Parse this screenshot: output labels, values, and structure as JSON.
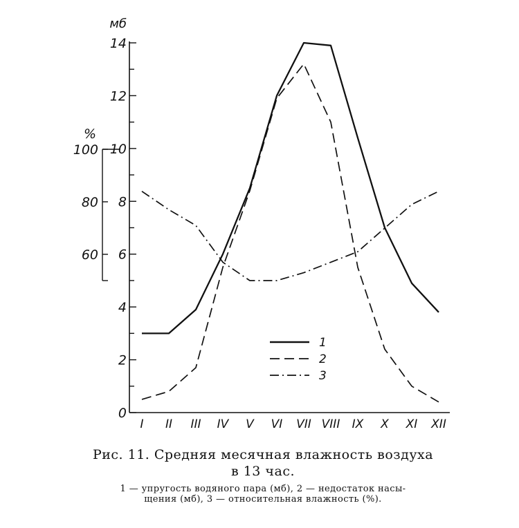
{
  "chart_data": {
    "type": "line",
    "x": [
      "I",
      "II",
      "III",
      "IV",
      "V",
      "VI",
      "VII",
      "VIII",
      "IX",
      "X",
      "XI",
      "XII"
    ],
    "left_axis": {
      "unit": "мб",
      "ylim": [
        0,
        14
      ],
      "ticks": [
        "0",
        "2",
        "4",
        "6",
        "8",
        "10",
        "12",
        "14"
      ]
    },
    "inner_axis": {
      "unit": "%",
      "ylim": [
        50,
        100
      ],
      "ticks": [
        "60",
        "80",
        "100"
      ]
    },
    "series": [
      {
        "name": "1",
        "axis": "left_axis",
        "values": [
          3.0,
          3.0,
          3.9,
          6.0,
          8.5,
          12.0,
          14.0,
          13.9,
          10.4,
          7.0,
          4.9,
          3.8
        ]
      },
      {
        "name": "2",
        "axis": "left_axis",
        "values": [
          0.5,
          0.8,
          1.7,
          5.5,
          8.4,
          11.9,
          13.2,
          11.0,
          5.5,
          2.4,
          1.0,
          0.4
        ]
      },
      {
        "name": "3",
        "axis": "inner_axis",
        "values": [
          84,
          77,
          71,
          57,
          50,
          50,
          53,
          57,
          61,
          70,
          79,
          84
        ]
      }
    ],
    "legend_position": "center-right",
    "grid": false
  },
  "caption": {
    "title_line1": "Рис. 11. Средняя месячная влажность воздуха",
    "title_line2": "в 13 час.",
    "note_line1": "1 — упругость водяного пара (мб), 2 — недостаток насы-",
    "note_line2": "щения (мб), 3 — относительная влажность (%)."
  }
}
